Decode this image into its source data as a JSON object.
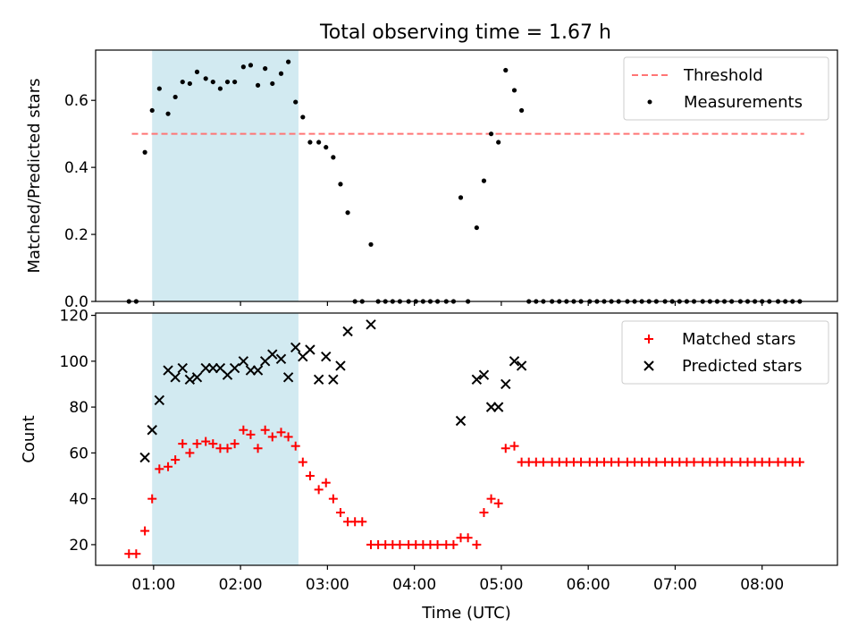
{
  "title": "Total observing time = 1.67 h",
  "xlabel": "Time (UTC)",
  "x_ticks": [
    "01:00",
    "02:00",
    "03:00",
    "04:00",
    "05:00",
    "06:00",
    "07:00",
    "08:00"
  ],
  "shaded_span": {
    "start": "00:59",
    "end": "02:40",
    "color": "#add8e6"
  },
  "chart_data": [
    {
      "type": "scatter",
      "ylabel": "Matched/Predicted stars",
      "xlim": [
        "00:20",
        "08:52"
      ],
      "ylim": [
        0,
        0.75
      ],
      "y_ticks": [
        "0.0",
        "0.2",
        "0.4",
        "0.6"
      ],
      "threshold": {
        "name": "Threshold",
        "value": 0.5,
        "x_start": "00:45",
        "x_end": "08:29",
        "color": "#ff7575"
      },
      "legend": {
        "position": "top-right",
        "entries": [
          "Threshold",
          "Measurements"
        ]
      },
      "series": [
        {
          "name": "Measurements",
          "color": "#000000",
          "points": [
            [
              "00:43",
              0.0
            ],
            [
              "00:48",
              0.0
            ],
            [
              "00:54",
              0.445
            ],
            [
              "00:59",
              0.57
            ],
            [
              "01:04",
              0.635
            ],
            [
              "01:10",
              0.56
            ],
            [
              "01:15",
              0.61
            ],
            [
              "01:20",
              0.655
            ],
            [
              "01:25",
              0.65
            ],
            [
              "01:30",
              0.685
            ],
            [
              "01:36",
              0.665
            ],
            [
              "01:41",
              0.655
            ],
            [
              "01:46",
              0.635
            ],
            [
              "01:51",
              0.655
            ],
            [
              "01:56",
              0.655
            ],
            [
              "02:02",
              0.7
            ],
            [
              "02:07",
              0.705
            ],
            [
              "02:12",
              0.645
            ],
            [
              "02:17",
              0.695
            ],
            [
              "02:22",
              0.65
            ],
            [
              "02:28",
              0.68
            ],
            [
              "02:33",
              0.715
            ],
            [
              "02:38",
              0.595
            ],
            [
              "02:43",
              0.55
            ],
            [
              "02:48",
              0.475
            ],
            [
              "02:54",
              0.475
            ],
            [
              "02:59",
              0.46
            ],
            [
              "03:04",
              0.43
            ],
            [
              "03:09",
              0.35
            ],
            [
              "03:14",
              0.265
            ],
            [
              "03:19",
              0.0
            ],
            [
              "03:24",
              0.0
            ],
            [
              "03:30",
              0.17
            ],
            [
              "03:35",
              0.0
            ],
            [
              "03:40",
              0.0
            ],
            [
              "03:45",
              0.0
            ],
            [
              "03:50",
              0.0
            ],
            [
              "03:56",
              0.0
            ],
            [
              "04:01",
              0.0
            ],
            [
              "04:06",
              0.0
            ],
            [
              "04:11",
              0.0
            ],
            [
              "04:16",
              0.0
            ],
            [
              "04:22",
              0.0
            ],
            [
              "04:27",
              0.0
            ],
            [
              "04:32",
              0.31
            ],
            [
              "04:37",
              0.0
            ],
            [
              "04:43",
              0.22
            ],
            [
              "04:48",
              0.36
            ],
            [
              "04:53",
              0.5
            ],
            [
              "04:58",
              0.475
            ],
            [
              "05:03",
              0.69
            ],
            [
              "05:09",
              0.63
            ],
            [
              "05:14",
              0.57
            ],
            [
              "05:19",
              0.0
            ],
            [
              "05:24",
              0.0
            ],
            [
              "05:29",
              0.0
            ],
            [
              "05:35",
              0.0
            ],
            [
              "05:40",
              0.0
            ],
            [
              "05:45",
              0.0
            ],
            [
              "05:50",
              0.0
            ],
            [
              "05:55",
              0.0
            ],
            [
              "06:01",
              0.0
            ],
            [
              "06:06",
              0.0
            ],
            [
              "06:11",
              0.0
            ],
            [
              "06:16",
              0.0
            ],
            [
              "06:21",
              0.0
            ],
            [
              "06:27",
              0.0
            ],
            [
              "06:32",
              0.0
            ],
            [
              "06:37",
              0.0
            ],
            [
              "06:42",
              0.0
            ],
            [
              "06:47",
              0.0
            ],
            [
              "06:53",
              0.0
            ],
            [
              "06:58",
              0.0
            ],
            [
              "07:03",
              0.0
            ],
            [
              "07:08",
              0.0
            ],
            [
              "07:13",
              0.0
            ],
            [
              "07:19",
              0.0
            ],
            [
              "07:24",
              0.0
            ],
            [
              "07:29",
              0.0
            ],
            [
              "07:34",
              0.0
            ],
            [
              "07:39",
              0.0
            ],
            [
              "07:45",
              0.0
            ],
            [
              "07:50",
              0.0
            ],
            [
              "07:55",
              0.0
            ],
            [
              "08:00",
              0.0
            ],
            [
              "08:05",
              0.0
            ],
            [
              "08:11",
              0.0
            ],
            [
              "08:16",
              0.0
            ],
            [
              "08:21",
              0.0
            ],
            [
              "08:26",
              0.0
            ]
          ]
        }
      ]
    },
    {
      "type": "scatter",
      "ylabel": "Count",
      "xlim": [
        "00:20",
        "08:52"
      ],
      "ylim": [
        11,
        121
      ],
      "y_ticks": [
        "20",
        "40",
        "60",
        "80",
        "100",
        "120"
      ],
      "legend": {
        "position": "top-right",
        "entries": [
          "Matched stars",
          "Predicted stars"
        ]
      },
      "series": [
        {
          "name": "Matched stars",
          "marker": "+",
          "color": "#ff0000",
          "points": [
            [
              "00:43",
              16
            ],
            [
              "00:48",
              16
            ],
            [
              "00:54",
              26
            ],
            [
              "00:59",
              40
            ],
            [
              "01:04",
              53
            ],
            [
              "01:10",
              54
            ],
            [
              "01:15",
              57
            ],
            [
              "01:20",
              64
            ],
            [
              "01:25",
              60
            ],
            [
              "01:30",
              64
            ],
            [
              "01:36",
              65
            ],
            [
              "01:41",
              64
            ],
            [
              "01:46",
              62
            ],
            [
              "01:51",
              62
            ],
            [
              "01:56",
              64
            ],
            [
              "02:02",
              70
            ],
            [
              "02:07",
              68
            ],
            [
              "02:12",
              62
            ],
            [
              "02:17",
              70
            ],
            [
              "02:22",
              67
            ],
            [
              "02:28",
              69
            ],
            [
              "02:33",
              67
            ],
            [
              "02:38",
              63
            ],
            [
              "02:43",
              56
            ],
            [
              "02:48",
              50
            ],
            [
              "02:54",
              44
            ],
            [
              "02:59",
              47
            ],
            [
              "03:04",
              40
            ],
            [
              "03:09",
              34
            ],
            [
              "03:14",
              30
            ],
            [
              "03:19",
              30
            ],
            [
              "03:24",
              30
            ],
            [
              "03:30",
              20
            ],
            [
              "03:35",
              20
            ],
            [
              "03:40",
              20
            ],
            [
              "03:45",
              20
            ],
            [
              "03:50",
              20
            ],
            [
              "03:56",
              20
            ],
            [
              "04:01",
              20
            ],
            [
              "04:06",
              20
            ],
            [
              "04:11",
              20
            ],
            [
              "04:16",
              20
            ],
            [
              "04:22",
              20
            ],
            [
              "04:27",
              20
            ],
            [
              "04:32",
              23
            ],
            [
              "04:37",
              23
            ],
            [
              "04:43",
              20
            ],
            [
              "04:48",
              34
            ],
            [
              "04:53",
              40
            ],
            [
              "04:58",
              38
            ],
            [
              "05:03",
              62
            ],
            [
              "05:09",
              63
            ],
            [
              "05:14",
              56
            ],
            [
              "05:19",
              56
            ],
            [
              "05:24",
              56
            ],
            [
              "05:29",
              56
            ],
            [
              "05:35",
              56
            ],
            [
              "05:40",
              56
            ],
            [
              "05:45",
              56
            ],
            [
              "05:50",
              56
            ],
            [
              "05:55",
              56
            ],
            [
              "06:01",
              56
            ],
            [
              "06:06",
              56
            ],
            [
              "06:11",
              56
            ],
            [
              "06:16",
              56
            ],
            [
              "06:21",
              56
            ],
            [
              "06:27",
              56
            ],
            [
              "06:32",
              56
            ],
            [
              "06:37",
              56
            ],
            [
              "06:42",
              56
            ],
            [
              "06:47",
              56
            ],
            [
              "06:53",
              56
            ],
            [
              "06:58",
              56
            ],
            [
              "07:03",
              56
            ],
            [
              "07:08",
              56
            ],
            [
              "07:13",
              56
            ],
            [
              "07:19",
              56
            ],
            [
              "07:24",
              56
            ],
            [
              "07:29",
              56
            ],
            [
              "07:34",
              56
            ],
            [
              "07:39",
              56
            ],
            [
              "07:45",
              56
            ],
            [
              "07:50",
              56
            ],
            [
              "07:55",
              56
            ],
            [
              "08:00",
              56
            ],
            [
              "08:05",
              56
            ],
            [
              "08:11",
              56
            ],
            [
              "08:16",
              56
            ],
            [
              "08:21",
              56
            ],
            [
              "08:26",
              56
            ]
          ]
        },
        {
          "name": "Predicted stars",
          "marker": "x",
          "color": "#000000",
          "points": [
            [
              "00:54",
              58
            ],
            [
              "00:59",
              70
            ],
            [
              "01:04",
              83
            ],
            [
              "01:10",
              96
            ],
            [
              "01:15",
              93
            ],
            [
              "01:20",
              97
            ],
            [
              "01:25",
              92
            ],
            [
              "01:30",
              93
            ],
            [
              "01:36",
              97
            ],
            [
              "01:41",
              97
            ],
            [
              "01:46",
              97
            ],
            [
              "01:51",
              94
            ],
            [
              "01:56",
              97
            ],
            [
              "02:02",
              100
            ],
            [
              "02:07",
              96
            ],
            [
              "02:12",
              96
            ],
            [
              "02:17",
              100
            ],
            [
              "02:22",
              103
            ],
            [
              "02:28",
              101
            ],
            [
              "02:33",
              93
            ],
            [
              "02:38",
              106
            ],
            [
              "02:43",
              102
            ],
            [
              "02:48",
              105
            ],
            [
              "02:54",
              92
            ],
            [
              "02:59",
              102
            ],
            [
              "03:04",
              92
            ],
            [
              "03:09",
              98
            ],
            [
              "03:14",
              113
            ],
            [
              "03:30",
              116
            ],
            [
              "04:32",
              74
            ],
            [
              "04:43",
              92
            ],
            [
              "04:48",
              94
            ],
            [
              "04:53",
              80
            ],
            [
              "04:58",
              80
            ],
            [
              "05:03",
              90
            ],
            [
              "05:09",
              100
            ],
            [
              "05:14",
              98
            ]
          ]
        }
      ]
    }
  ]
}
